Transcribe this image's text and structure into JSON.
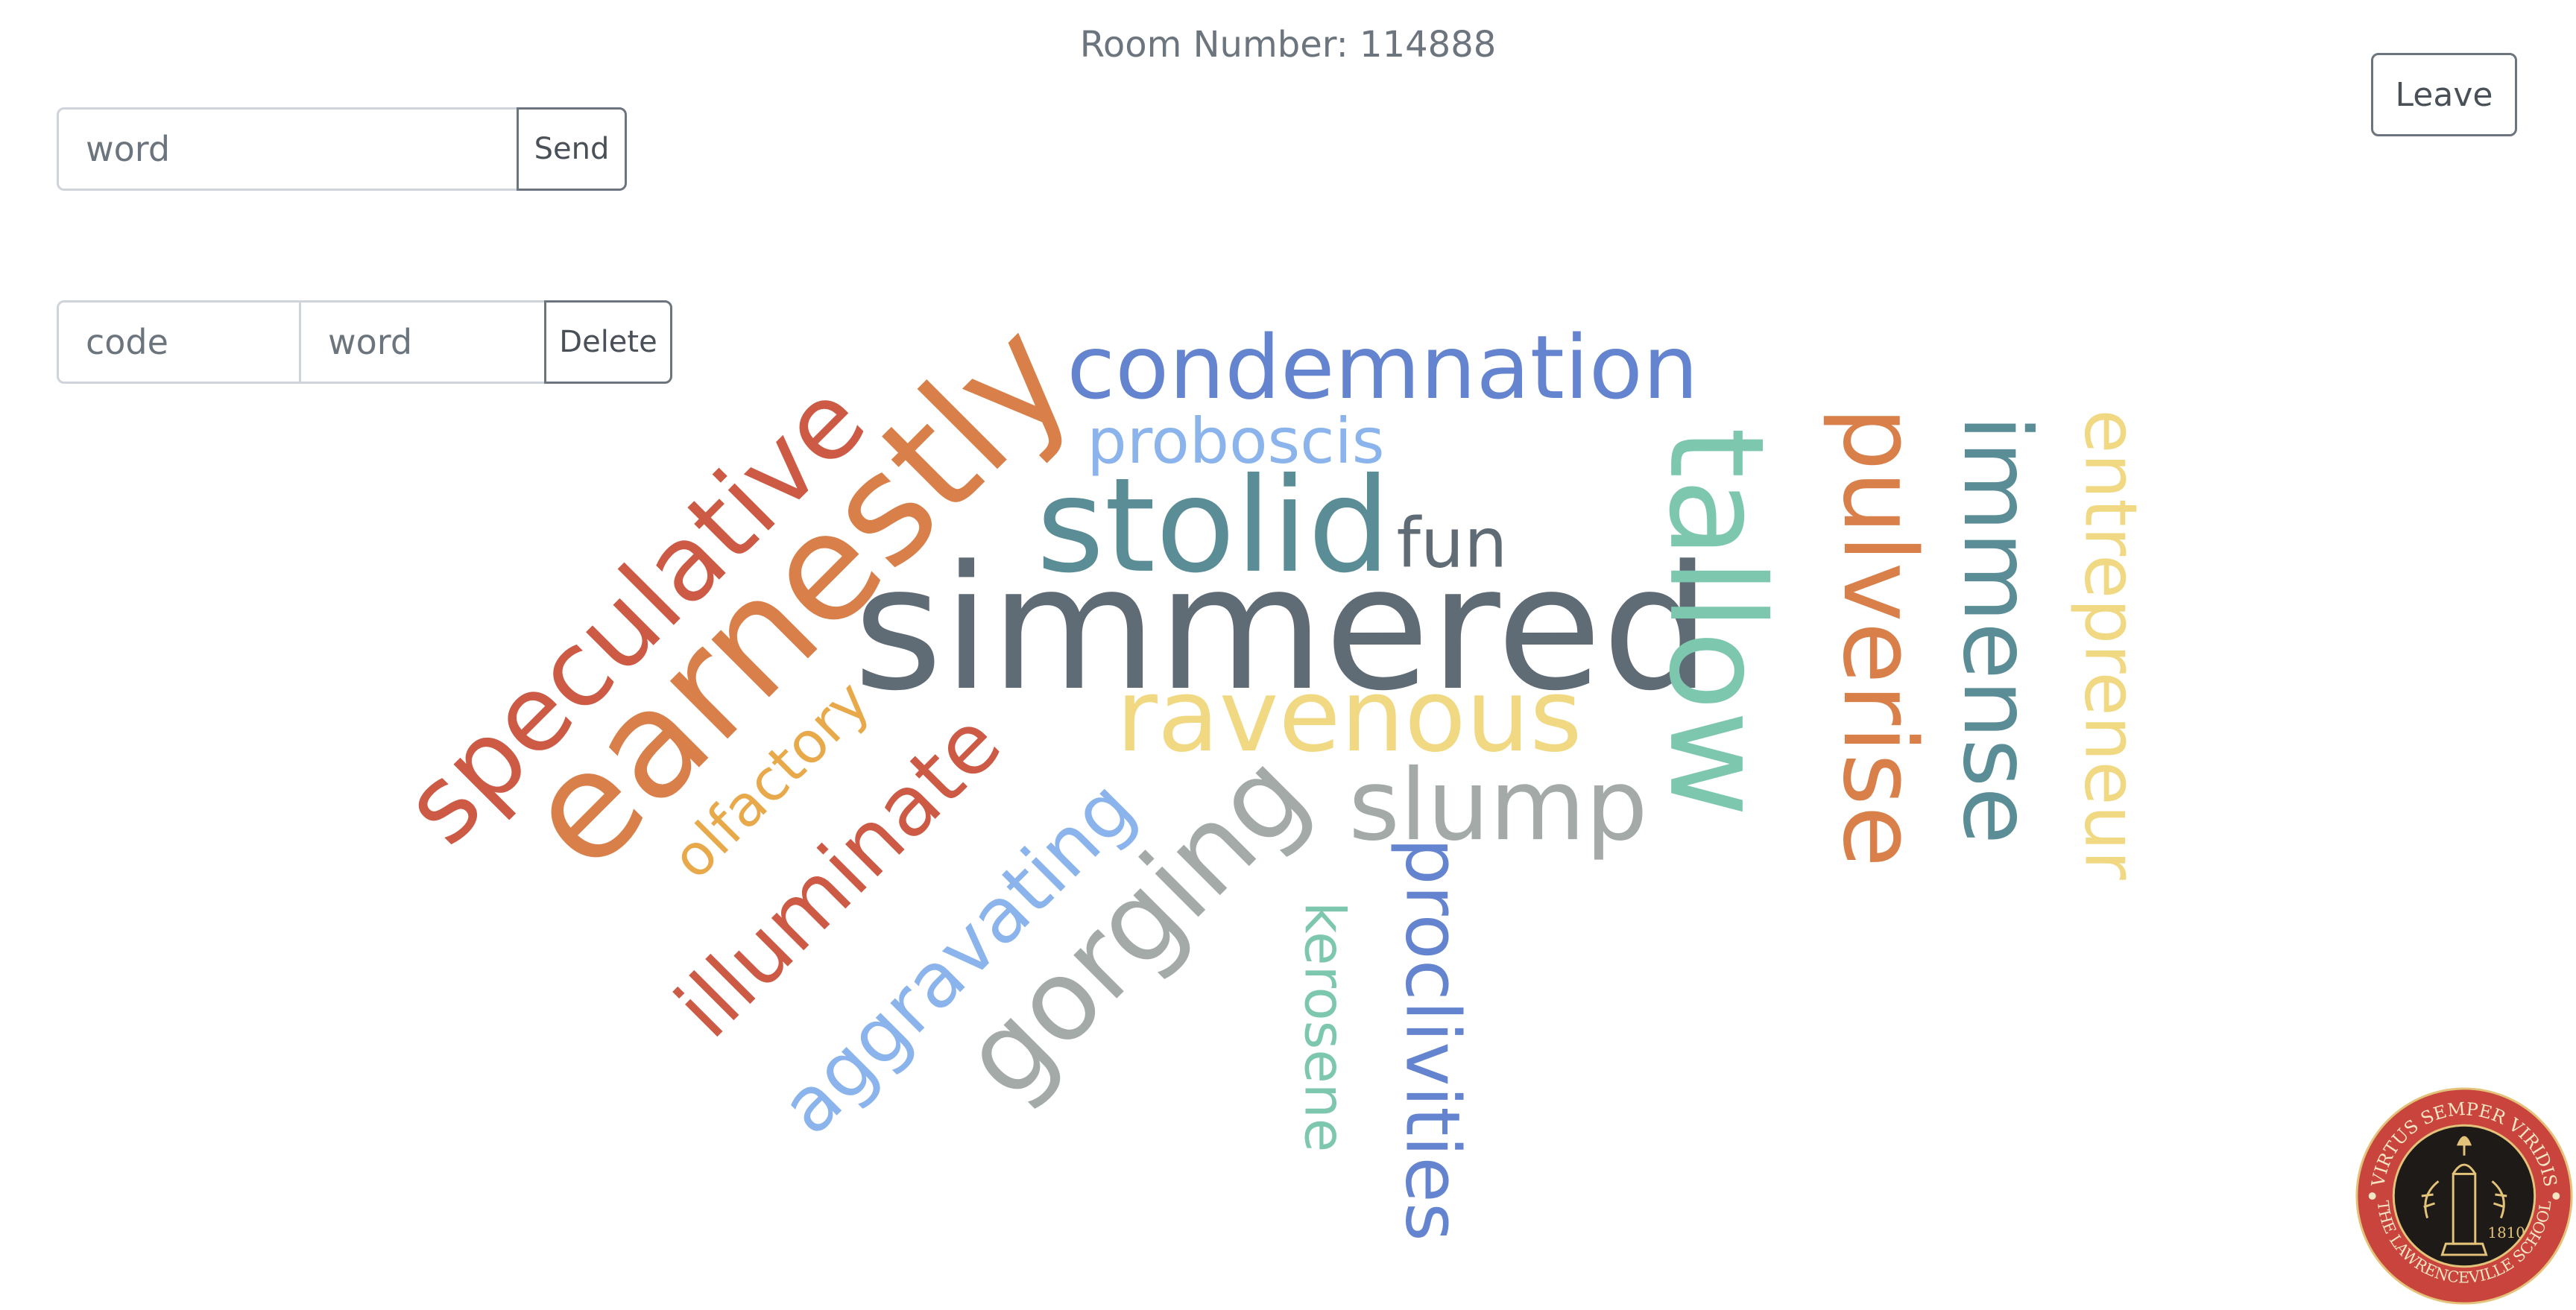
{
  "header": {
    "room_label": "Room Number: 114888"
  },
  "actions": {
    "leave_label": "Leave"
  },
  "send_form": {
    "word_placeholder": "word",
    "send_label": "Send"
  },
  "delete_form": {
    "code_placeholder": "code",
    "word_placeholder": "word",
    "delete_label": "Delete"
  },
  "word_cloud": {
    "words": [
      {
        "text": "simmered",
        "color": "#5f6b75"
      },
      {
        "text": "earnestly",
        "color": "#d9804a"
      },
      {
        "text": "tallow",
        "color": "#7dc7ae"
      },
      {
        "text": "stolid",
        "color": "#5b8d97"
      },
      {
        "text": "speculative",
        "color": "#cc5a45"
      },
      {
        "text": "pulverise",
        "color": "#d9804a"
      },
      {
        "text": "immense",
        "color": "#5b8d97"
      },
      {
        "text": "ravenous",
        "color": "#f0d982"
      },
      {
        "text": "condemnation",
        "color": "#6584cf"
      },
      {
        "text": "gorging",
        "color": "#a3aaa8"
      },
      {
        "text": "slump",
        "color": "#a3aaa8"
      },
      {
        "text": "illuminate",
        "color": "#cc5a45"
      },
      {
        "text": "entrepreneur",
        "color": "#f0d982"
      },
      {
        "text": "aggravating",
        "color": "#8ab4eb"
      },
      {
        "text": "proclivities",
        "color": "#6584cf"
      },
      {
        "text": "proboscis",
        "color": "#8ab4eb"
      },
      {
        "text": "olfactory",
        "color": "#e8a94a"
      },
      {
        "text": "fun",
        "color": "#5f6b75"
      },
      {
        "text": "kerosene",
        "color": "#7dc7ae"
      }
    ]
  },
  "seal": {
    "motto_top": "VIRTUS SEMPER VIRIDIS",
    "motto_bottom": "THE LAWRENCEVILLE SCHOOL",
    "year": "1810",
    "ring_color": "#c9443d",
    "center_color": "#1d1a17",
    "gold_color": "#e3c27a"
  }
}
